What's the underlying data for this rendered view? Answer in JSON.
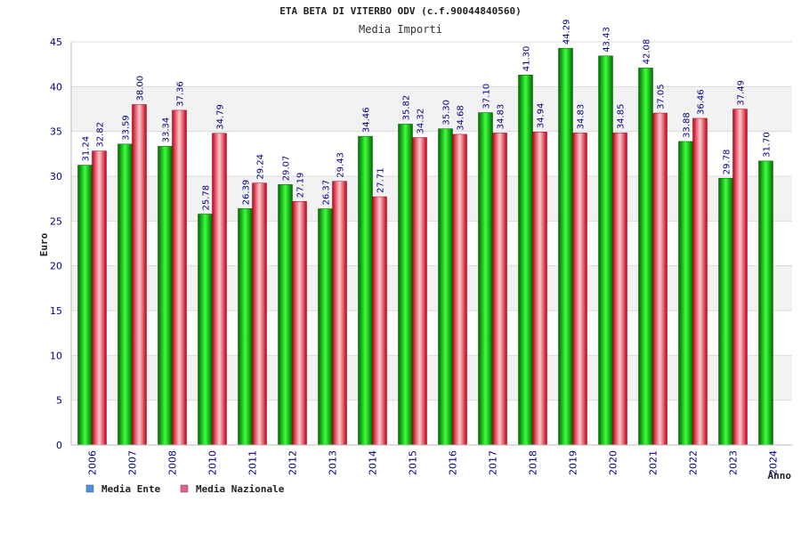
{
  "chart_data": {
    "type": "bar",
    "title": "ETA BETA DI VITERBO ODV (c.f.90044840560)",
    "subtitle": "Media Importi",
    "xlabel": "Anno",
    "ylabel": "Euro",
    "ylim": [
      0,
      45
    ],
    "yticks": [
      0,
      5,
      10,
      15,
      20,
      25,
      30,
      35,
      40,
      45
    ],
    "grid": true,
    "legend_position": "bottom-left",
    "categories": [
      "2006",
      "2007",
      "2008",
      "2010",
      "2011",
      "2012",
      "2013",
      "2014",
      "2015",
      "2016",
      "2017",
      "2018",
      "2019",
      "2020",
      "2021",
      "2022",
      "2023",
      "2024"
    ],
    "series": [
      {
        "name": "Media Ente",
        "color": "#00b000",
        "values": [
          31.24,
          33.59,
          33.34,
          25.78,
          26.39,
          29.07,
          26.37,
          34.46,
          35.82,
          35.3,
          37.1,
          41.3,
          44.29,
          43.43,
          42.08,
          33.88,
          29.78,
          31.7
        ],
        "labels": [
          "31.24",
          "33.59",
          "33.34",
          "25.78",
          "26.39",
          "29.07",
          "26.37",
          "34.46",
          "35.82",
          "35.30",
          "37.10",
          "41.30",
          "44.29",
          "43.43",
          "42.08",
          "33.88",
          "29.78",
          "31.70"
        ]
      },
      {
        "name": "Media Nazionale",
        "color": "#e02030",
        "values": [
          32.82,
          38.0,
          37.36,
          34.79,
          29.24,
          27.19,
          29.43,
          27.71,
          34.32,
          34.68,
          34.83,
          34.94,
          34.83,
          34.85,
          37.05,
          36.46,
          37.49,
          null
        ],
        "labels": [
          "32.82",
          "38.00",
          "37.36",
          "34.79",
          "29.24",
          "27.19",
          "29.43",
          "27.71",
          "34.32",
          "34.68",
          "34.83",
          "34.94",
          "34.83",
          "34.85",
          "37.05",
          "36.46",
          "37.49",
          ""
        ]
      }
    ],
    "legend": [
      {
        "label": "Media Ente",
        "swatch": "#4a90e2"
      },
      {
        "label": "Media Nazionale",
        "swatch": "#e06090"
      }
    ]
  }
}
